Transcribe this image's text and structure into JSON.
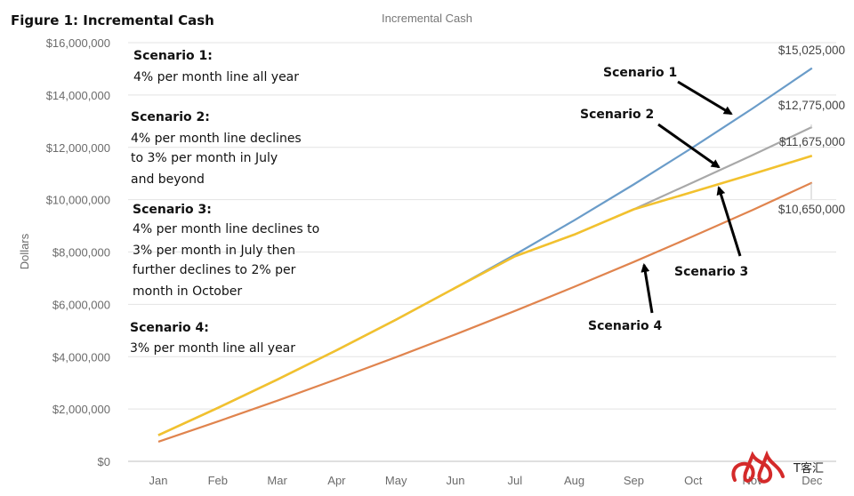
{
  "figure_title": "Figure 1:  Incremental Cash",
  "chart_data": {
    "type": "line",
    "title": "Incremental Cash",
    "ylabel": "Dollars",
    "xlabel": "",
    "categories": [
      "Jan",
      "Feb",
      "Mar",
      "Apr",
      "May",
      "Jun",
      "Jul",
      "Aug",
      "Sep",
      "Oct",
      "Nov",
      "Dec"
    ],
    "ylim": [
      0,
      16000000
    ],
    "yticks": [
      0,
      2000000,
      4000000,
      6000000,
      8000000,
      10000000,
      12000000,
      14000000,
      16000000
    ],
    "ytick_labels": [
      "$0",
      "$2,000,000",
      "$4,000,000",
      "$6,000,000",
      "$8,000,000",
      "$10,000,000",
      "$12,000,000",
      "$14,000,000",
      "$16,000,000"
    ],
    "grid": true,
    "series": [
      {
        "name": "Scenario 1",
        "color": "#6a9cc9",
        "values": [
          1000000,
          2040000,
          3122000,
          4246000,
          5416000,
          6633000,
          7898000,
          9214000,
          10582000,
          12006000,
          13486000,
          15025000
        ],
        "end_label": "$15,025,000"
      },
      {
        "name": "Scenario 2",
        "color": "#a8a8a8",
        "values": [
          1000000,
          2040000,
          3122000,
          4246000,
          5416000,
          6633000,
          7832000,
          8666000,
          9632000,
          10664000,
          11704000,
          12775000
        ],
        "end_label": "$12,775,000"
      },
      {
        "name": "Scenario 3",
        "color": "#f2c12e",
        "values": [
          1000000,
          2040000,
          3122000,
          4246000,
          5416000,
          6633000,
          7832000,
          8666000,
          9632000,
          10300000,
          10980000,
          11675000
        ],
        "end_label": "$11,675,000"
      },
      {
        "name": "Scenario 4",
        "color": "#e0844e",
        "values": [
          750000,
          1522000,
          2318000,
          3138000,
          3982000,
          4852000,
          5748000,
          6671000,
          7621000,
          8600000,
          9608000,
          10650000
        ],
        "end_label": "$10,650,000"
      }
    ]
  },
  "annotations": [
    {
      "head": "Scenario 1:",
      "lines": [
        "4% per month line all year"
      ]
    },
    {
      "head": "Scenario 2:",
      "lines": [
        "4% per month line declines",
        "to 3% per month in July",
        "and beyond"
      ]
    },
    {
      "head": "Scenario 3:",
      "lines": [
        "4% per month line declines to",
        "3% per month in July then",
        "further declines to 2% per",
        "month in October"
      ]
    },
    {
      "head": "Scenario 4:",
      "lines": [
        "3% per month line all year"
      ]
    }
  ],
  "callouts": [
    "Scenario 1",
    "Scenario 2",
    "Scenario 3",
    "Scenario 4"
  ],
  "watermark": {
    "text": "T客汇",
    "logo_color": "#d42a2a"
  }
}
